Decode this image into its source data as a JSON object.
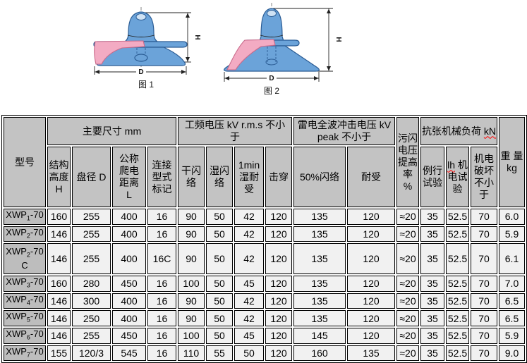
{
  "figures": {
    "items": [
      {
        "caption": "图 1",
        "h_label": "H",
        "d_label": "D"
      },
      {
        "caption": "图 2",
        "h_label": "H",
        "d_label": "D"
      }
    ],
    "colors": {
      "insulator_body_blue": "#6ba3d9",
      "body_outline_blue": "#2b5c94",
      "cross_section_pink": "#f3abc3",
      "pink_outline": "#c96a8a"
    }
  },
  "table": {
    "colors": {
      "header_bg": "#c3c3c3",
      "model_col_bg": "#bdbdbd",
      "cell_bg": "#f1f1f1",
      "border": "#000000",
      "spellcheck_red": "#ff0000"
    },
    "corner_header": "型号",
    "groups": [
      {
        "label": "主要尺寸  mm"
      },
      {
        "label": "工频电压 kV r.m.s 不小\n于"
      },
      {
        "label": "雷电全波冲击电压 kV\npeak 不小于"
      },
      {
        "label_prefix": "抗张机械负荷 ",
        "label_flagged": "kN"
      }
    ],
    "pollution_header": "污闪\n电压\n提高\n率  %",
    "weight_header": "重 量\nkg",
    "subheaders": {
      "height": "结构\n高度\nH",
      "diameter": "盘径 D",
      "creepage": "公称\n爬电\n距离\nL",
      "coupling": "连接\n型式\n标记",
      "dry_flashover": "干闪\n络",
      "wet_flashover": "湿闪\n络",
      "wet_withstand": "1min\n湿耐\n受",
      "puncture": "击穿",
      "flashover50": "50%闪络",
      "withstand": "耐受",
      "routine_test": "例行\n试验",
      "em_test_flagged": "lh",
      "em_test_rest": " 机\n电试\n验",
      "em_breaking": "机电\n破坏\n不小\n于"
    },
    "rows": [
      {
        "model": {
          "base": "XWP",
          "sub": "1",
          "rest": "-70"
        },
        "values": [
          "160",
          "255",
          "400",
          "16",
          "90",
          "50",
          "42",
          "120",
          "135",
          "120",
          "≈20",
          "35",
          "52.5",
          "70",
          "6.0"
        ]
      },
      {
        "model": {
          "base": "XWP",
          "sub": "2",
          "rest": "-70"
        },
        "values": [
          "146",
          "255",
          "400",
          "16",
          "90",
          "50",
          "42",
          "120",
          "135",
          "120",
          "≈20",
          "35",
          "52.5",
          "70",
          "5.9"
        ]
      },
      {
        "model": {
          "base": "XWP",
          "sub": "2",
          "rest": "-70",
          "line2": "C"
        },
        "values": [
          "146",
          "255",
          "400",
          "16C",
          "90",
          "50",
          "42",
          "120",
          "135",
          "120",
          "≈20",
          "35",
          "52.5",
          "70",
          "6.1"
        ]
      },
      {
        "model": {
          "base": "XWP",
          "sub": "3",
          "rest": "-70"
        },
        "values": [
          "160",
          "280",
          "450",
          "16",
          "100",
          "50",
          "45",
          "120",
          "135",
          "120",
          "≈20",
          "35",
          "52.5",
          "70",
          "7.0"
        ]
      },
      {
        "model": {
          "base": "XWP",
          "sub": "4",
          "rest": "-70"
        },
        "values": [
          "146",
          "300",
          "400",
          "16",
          "90",
          "50",
          "42",
          "120",
          "135",
          "120",
          "≈20",
          "35",
          "52.5",
          "70",
          "6.5"
        ]
      },
      {
        "model": {
          "base": "XWP",
          "sub": "5",
          "rest": "-70"
        },
        "values": [
          "146",
          "250",
          "400",
          "16",
          "90",
          "50",
          "42",
          "120",
          "135",
          "120",
          "≈20",
          "35",
          "52.5",
          "70",
          "6.5"
        ]
      },
      {
        "model": {
          "base": "XWP",
          "sub": "6",
          "rest": "-70"
        },
        "values": [
          "146",
          "255",
          "450",
          "16",
          "100",
          "50",
          "45",
          "120",
          "145",
          "120",
          "≈20",
          "35",
          "52.5",
          "70",
          "5.9"
        ]
      },
      {
        "model": {
          "base": "XWP",
          "sub": "7",
          "rest": "-70"
        },
        "values": [
          "155",
          "120/3",
          "545",
          "16",
          "110",
          "55",
          "50",
          "120",
          "160",
          "135",
          "≈20",
          "35",
          "52.5",
          "70",
          "9.0"
        ]
      }
    ]
  }
}
